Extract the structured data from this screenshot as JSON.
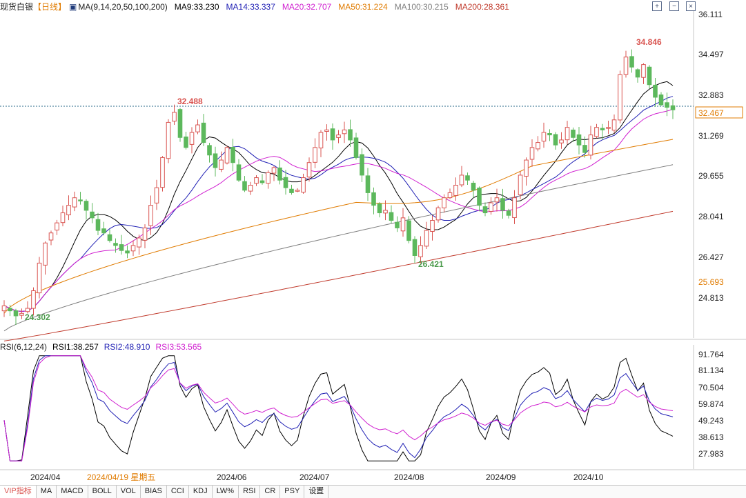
{
  "header": {
    "symbol": "现货白银",
    "period": "【日线】",
    "ma_label": "MA(9,14,20,50,100,200)",
    "ma9": "MA9:33.230",
    "ma14": "MA14:33.337",
    "ma20": "MA20:32.707",
    "ma50": "MA50:31.224",
    "ma100": "MA100:30.215",
    "ma200": "MA200:28.361"
  },
  "rsi_header": {
    "label": "RSI(6,12,24)",
    "rsi1": "RSI1:38.257",
    "rsi2": "RSI2:48.910",
    "rsi3": "RSI3:53.565"
  },
  "toolbar": {
    "plus": "+",
    "minus": "−",
    "close": "×"
  },
  "colors": {
    "up": "#d9534f",
    "down": "#5cb85c",
    "ma9": "#000000",
    "ma14": "#1f1fb4",
    "ma20": "#d01fd0",
    "ma50": "#e07b00",
    "ma100": "#7f7f7f",
    "ma200": "#c0392b",
    "rsi1": "#000000",
    "rsi2": "#1f1fb4",
    "rsi3": "#d01fd0"
  },
  "chart_data": {
    "type": "candlestick",
    "price_ticks": [
      "36.111",
      "34.497",
      "32.883",
      "31.269",
      "29.655",
      "28.041",
      "26.427",
      "24.813"
    ],
    "rsi_ticks": [
      "91.764",
      "81.134",
      "70.504",
      "59.874",
      "49.243",
      "38.613",
      "27.983"
    ],
    "date_labels": [
      "2024/04",
      "2024/06",
      "2024/07",
      "2024/08",
      "2024/09",
      "2024/10"
    ],
    "crosshair_date": "2024/04/19 星期五",
    "current_price": "32.467",
    "right_marker": "25.693",
    "annotations": {
      "high": "34.846",
      "mid_high": "32.488",
      "low1": "24.302",
      "low2": "26.421"
    },
    "close": [
      24.6,
      24.4,
      24.2,
      24.3,
      24.5,
      25.2,
      26.3,
      27.1,
      27.5,
      27.9,
      28.3,
      28.6,
      28.9,
      28.8,
      28.4,
      28.1,
      27.6,
      27.5,
      27.2,
      27.0,
      26.8,
      26.7,
      27.0,
      27.3,
      27.7,
      28.6,
      29.3,
      30.5,
      31.9,
      32.3,
      31.3,
      30.9,
      31.5,
      31.8,
      31.1,
      30.6,
      30.1,
      30.4,
      30.9,
      30.3,
      29.6,
      29.2,
      29.4,
      29.7,
      29.5,
      29.9,
      30.1,
      29.6,
      29.3,
      29.1,
      29.2,
      29.7,
      30.3,
      30.9,
      31.5,
      31.6,
      31.2,
      31.4,
      31.6,
      31.2,
      30.5,
      29.8,
      29.1,
      28.6,
      28.3,
      28.4,
      28.0,
      27.7,
      28.1,
      27.2,
      26.6,
      27.0,
      27.6,
      28.0,
      28.5,
      28.9,
      29.1,
      29.4,
      29.8,
      29.6,
      29.2,
      28.6,
      28.3,
      28.7,
      28.9,
      28.4,
      28.2,
      28.9,
      29.8,
      30.4,
      30.9,
      31.1,
      31.5,
      31.4,
      31.0,
      31.2,
      31.7,
      31.3,
      31.0,
      30.7,
      31.4,
      31.7,
      31.6,
      31.7,
      32.0,
      33.8,
      34.5,
      34.1,
      33.7,
      34.2,
      33.4,
      32.9,
      32.6,
      32.5,
      32.4
    ]
  }
}
